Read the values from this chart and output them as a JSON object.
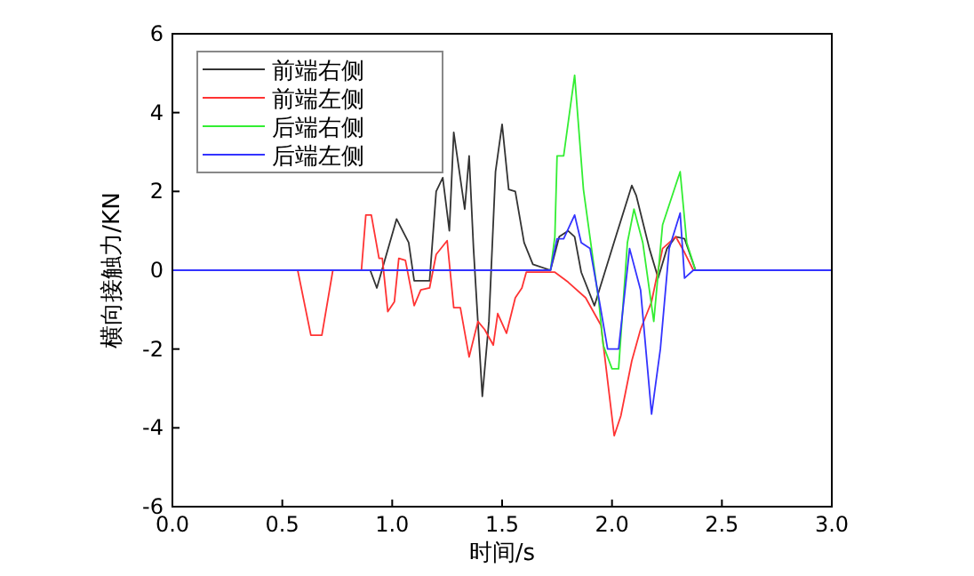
{
  "chart_data": {
    "type": "line",
    "xlabel": "时间/s",
    "ylabel": "横向接触力/KN",
    "xlim": [
      0,
      3.0
    ],
    "ylim": [
      -6,
      6
    ],
    "xticks": [
      {
        "value": 0,
        "label": "0.0"
      },
      {
        "value": 0.5,
        "label": "0.5"
      },
      {
        "value": 1,
        "label": "1.0"
      },
      {
        "value": 1.5,
        "label": "1.5"
      },
      {
        "value": 2,
        "label": "2.0"
      },
      {
        "value": 2.5,
        "label": "2.5"
      },
      {
        "value": 3,
        "label": "3.0"
      }
    ],
    "yticks": [
      -6,
      -4,
      -2,
      0,
      2,
      4,
      6
    ],
    "legend": "top left",
    "grid": false,
    "marker": "none",
    "line_style": "solid",
    "series": [
      {
        "name": "前端右侧",
        "color": "#333333",
        "x": [
          0,
          0.9,
          0.93,
          1.02,
          1.075,
          1.1,
          1.17,
          1.2,
          1.23,
          1.26,
          1.28,
          1.33,
          1.35,
          1.37,
          1.41,
          1.44,
          1.47,
          1.5,
          1.53,
          1.56,
          1.6,
          1.64,
          1.72,
          1.76,
          1.8,
          1.83,
          1.86,
          1.92,
          2.02,
          2.09,
          2.11,
          2.17,
          2.21,
          2.25,
          2.29,
          2.33,
          2.38,
          3.0
        ],
        "values": [
          0,
          0,
          -0.45,
          1.3,
          0.7,
          -0.27,
          -0.27,
          2.0,
          2.35,
          1.0,
          3.5,
          1.55,
          2.9,
          0.55,
          -3.2,
          -1.3,
          2.5,
          3.7,
          2.05,
          2.0,
          0.7,
          0.15,
          0,
          0.85,
          1.0,
          0.85,
          -0.05,
          -0.9,
          0.9,
          2.15,
          1.9,
          0.55,
          -0.2,
          0.55,
          0.85,
          0.8,
          0,
          0
        ]
      },
      {
        "name": "前端左侧",
        "color": "#ff3333",
        "x": [
          0,
          0.57,
          0.63,
          0.68,
          0.73,
          0.86,
          0.88,
          0.905,
          0.94,
          0.955,
          0.98,
          1.01,
          1.03,
          1.06,
          1.1,
          1.13,
          1.17,
          1.2,
          1.25,
          1.28,
          1.31,
          1.35,
          1.39,
          1.42,
          1.46,
          1.48,
          1.52,
          1.56,
          1.59,
          1.61,
          1.67,
          1.74,
          1.8,
          1.88,
          1.95,
          2.01,
          2.04,
          2.09,
          2.13,
          2.18,
          2.23,
          2.29,
          2.33,
          2.37,
          3.0
        ],
        "values": [
          0,
          0,
          -1.65,
          -1.65,
          0,
          0,
          1.4,
          1.4,
          0.3,
          0.3,
          -1.05,
          -0.8,
          0.3,
          0.25,
          -0.9,
          -0.5,
          -0.45,
          0.4,
          0.75,
          -0.95,
          -0.95,
          -2.2,
          -1.3,
          -1.5,
          -1.9,
          -1.1,
          -1.6,
          -0.7,
          -0.45,
          -0.05,
          -0.05,
          -0.05,
          -0.3,
          -0.7,
          -1.4,
          -4.2,
          -3.7,
          -2.3,
          -1.5,
          -0.8,
          0.55,
          0.85,
          0.45,
          0,
          0
        ]
      },
      {
        "name": "后端右侧",
        "color": "#33ee33",
        "x": [
          0,
          1.72,
          1.74,
          1.75,
          1.78,
          1.83,
          1.87,
          1.94,
          1.96,
          2.0,
          2.03,
          2.07,
          2.1,
          2.14,
          2.19,
          2.23,
          2.31,
          2.34,
          2.38,
          3.0
        ],
        "values": [
          0,
          0,
          0.85,
          2.9,
          2.9,
          4.95,
          2.05,
          -0.8,
          -1.9,
          -2.5,
          -2.5,
          0.7,
          1.55,
          0.7,
          -1.3,
          1.15,
          2.5,
          0.7,
          0,
          0
        ]
      },
      {
        "name": "后端左侧",
        "color": "#3333ff",
        "x": [
          0,
          1.72,
          1.75,
          1.78,
          1.83,
          1.86,
          1.9,
          1.94,
          1.98,
          2.03,
          2.08,
          2.13,
          2.18,
          2.22,
          2.26,
          2.31,
          2.33,
          2.37,
          3.0
        ],
        "values": [
          0,
          0,
          0.8,
          0.8,
          1.4,
          0.7,
          0.55,
          -0.7,
          -2.0,
          -2.0,
          0.55,
          -0.5,
          -3.65,
          -2.0,
          0.55,
          1.45,
          -0.2,
          0,
          0
        ]
      }
    ]
  }
}
